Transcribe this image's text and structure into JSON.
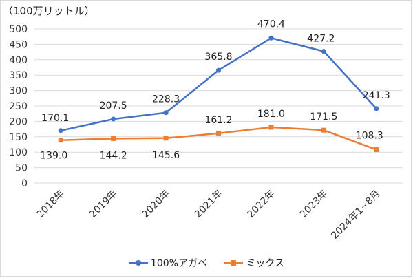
{
  "unit_label": "（100万リットル）",
  "colors": {
    "series1": "#4472C4",
    "series2": "#ED7D31",
    "grid": "#d9d9d9"
  },
  "chart_data": {
    "type": "line",
    "categories": [
      "2018年",
      "2019年",
      "2020年",
      "2021年",
      "2022年",
      "2023年",
      "2024年1~8月"
    ],
    "series": [
      {
        "name": "100%アガベ",
        "marker": "circle",
        "values": [
          170.1,
          207.5,
          228.3,
          365.8,
          470.4,
          427.2,
          241.3
        ],
        "labels": [
          "170.1",
          "207.5",
          "228.3",
          "365.8",
          "470.4",
          "427.2",
          "241.3"
        ]
      },
      {
        "name": "ミックス",
        "marker": "square",
        "values": [
          139.0,
          144.2,
          145.6,
          161.2,
          181.0,
          171.5,
          108.3
        ],
        "labels": [
          "139.0",
          "144.2",
          "145.6",
          "161.2",
          "181.0",
          "171.5",
          "108.3"
        ]
      }
    ],
    "ylim": [
      0,
      500
    ],
    "yticks": [
      0,
      50,
      100,
      150,
      200,
      250,
      300,
      350,
      400,
      450,
      500
    ],
    "ytick_labels": [
      "0",
      "50",
      "100",
      "150",
      "200",
      "250",
      "300",
      "350",
      "400",
      "450",
      "500"
    ],
    "grid": true,
    "legend": "bottom"
  }
}
